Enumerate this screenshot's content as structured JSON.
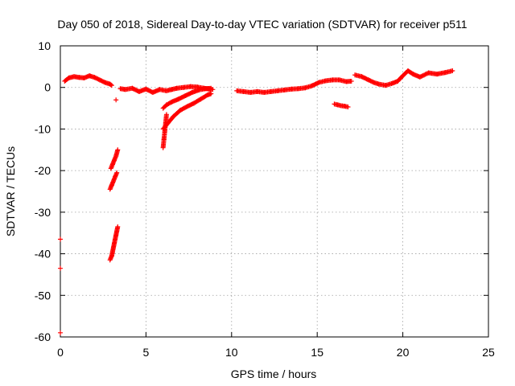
{
  "chart_data": {
    "type": "scatter",
    "title": "Day 050 of 2018, Sidereal Day-to-day VTEC variation (SDTVAR) for receiver p511",
    "xlabel": "GPS time / hours",
    "ylabel": "SDTVAR / TECUs",
    "xlim": [
      0,
      25
    ],
    "ylim": [
      -60,
      10
    ],
    "xticks": [
      0,
      5,
      10,
      15,
      20,
      25
    ],
    "xtick_labels": [
      "0",
      "5",
      "10",
      "15",
      "20",
      "25"
    ],
    "yticks": [
      10,
      0,
      -10,
      -20,
      -30,
      -40,
      -50,
      -60
    ],
    "ytick_labels": [
      "10",
      "0",
      "-10",
      "-20",
      "-30",
      "-40",
      "-50",
      "-60"
    ],
    "grid": true,
    "marker": "+",
    "color": "#ff0000",
    "series": [
      {
        "name": "SDTVAR",
        "segments": [
          {
            "x": [
              0.25,
              0.5,
              0.8,
              1.1,
              1.4,
              1.7,
              2.0,
              2.3,
              2.6,
              2.9,
              3.0
            ],
            "y": [
              1.5,
              2.3,
              2.6,
              2.4,
              2.3,
              2.8,
              2.4,
              1.8,
              1.2,
              0.8,
              0.5
            ]
          },
          {
            "x": [
              3.5,
              3.8,
              4.2,
              4.6,
              5.0,
              5.4,
              5.8,
              6.2,
              6.5,
              6.8,
              7.2,
              7.6,
              8.0,
              8.4,
              8.7,
              8.9
            ],
            "y": [
              -0.3,
              -0.5,
              -0.2,
              -1.0,
              -0.4,
              -1.2,
              -0.5,
              -0.8,
              -0.5,
              -0.2,
              0.0,
              0.2,
              0.1,
              -0.2,
              -0.4,
              -0.5
            ]
          },
          {
            "x": [
              10.3,
              10.7,
              11.1,
              11.5,
              11.9,
              12.3,
              12.7,
              13.1,
              13.5,
              13.9,
              14.3,
              14.7,
              15.1,
              15.5,
              15.9,
              16.3,
              16.7,
              17.0
            ],
            "y": [
              -0.8,
              -1.0,
              -1.2,
              -1.0,
              -1.2,
              -1.0,
              -0.8,
              -0.6,
              -0.4,
              -0.3,
              -0.1,
              0.4,
              1.2,
              1.6,
              1.8,
              1.8,
              1.4,
              1.5
            ]
          },
          {
            "x": [
              17.2,
              17.6,
              18.0,
              18.3,
              18.6,
              19.0,
              19.4,
              19.7,
              20.0,
              20.3,
              20.6,
              21.0,
              21.5,
              22.0,
              22.5,
              22.9
            ],
            "y": [
              3.0,
              2.6,
              1.8,
              1.2,
              0.8,
              0.5,
              1.0,
              1.5,
              2.8,
              4.0,
              3.2,
              2.5,
              3.5,
              3.2,
              3.6,
              4.0
            ]
          },
          {
            "x": [
              16.0,
              16.2,
              16.4,
              16.6,
              16.8
            ],
            "y": [
              -4.0,
              -4.2,
              -4.4,
              -4.5,
              -4.7
            ]
          },
          {
            "x": [
              6.0,
              6.2,
              6.5,
              6.9,
              7.3,
              7.7,
              8.1,
              8.5,
              8.8
            ],
            "y": [
              -5.0,
              -4.2,
              -3.5,
              -2.8,
              -2.0,
              -1.2,
              -0.6,
              -0.3,
              -0.2
            ]
          },
          {
            "x": [
              6.0,
              6.3,
              6.6,
              7.0,
              7.4,
              7.8,
              8.2,
              8.6,
              8.8
            ],
            "y": [
              -10.0,
              -8.5,
              -7.0,
              -5.5,
              -4.6,
              -3.8,
              -2.8,
              -1.8,
              -1.5
            ]
          },
          {
            "x": [
              6.0,
              6.05,
              6.1,
              6.15,
              6.2
            ],
            "y": [
              -14.5,
              -12.5,
              -10.5,
              -8.5,
              -6.5
            ]
          },
          {
            "x": [
              2.95,
              3.05,
              3.15,
              3.25,
              3.35
            ],
            "y": [
              -19.5,
              -18.5,
              -17.5,
              -16.5,
              -15.0
            ]
          },
          {
            "x": [
              2.9,
              3.0,
              3.1,
              3.2,
              3.3
            ],
            "y": [
              -24.5,
              -23.5,
              -22.5,
              -21.5,
              -20.5
            ]
          },
          {
            "x": [
              2.9,
              3.0,
              3.05,
              3.1,
              3.15,
              3.2,
              3.25,
              3.3,
              3.35
            ],
            "y": [
              -41.5,
              -40.5,
              -39.5,
              -38.5,
              -37.5,
              -36.5,
              -35.5,
              -34.5,
              -33.5
            ]
          },
          {
            "x": [
              3.25
            ],
            "y": [
              -3.0
            ]
          },
          {
            "x": [
              0.0,
              0.0,
              0.0
            ],
            "y": [
              -36.5,
              -43.5,
              -59.0
            ]
          }
        ]
      }
    ]
  }
}
